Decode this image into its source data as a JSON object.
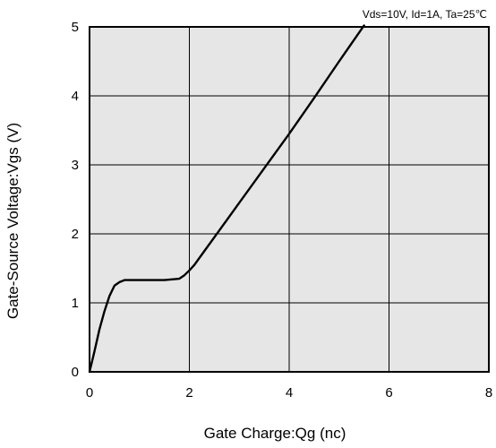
{
  "chart_data": {
    "type": "line",
    "annotation": "Vds=10V, Id=1A, Ta=25℃",
    "xlabel": "Gate Charge:Qg  (nc)",
    "ylabel": "Gate-Source Voltage:Vgs  (V)",
    "xlim": [
      0,
      8
    ],
    "ylim": [
      0,
      5
    ],
    "xticks": [
      "0",
      "2",
      "4",
      "6",
      "8"
    ],
    "yticks": [
      "0",
      "1",
      "2",
      "3",
      "4",
      "5"
    ],
    "grid": true,
    "background_color": "#e6e6e6",
    "line_color": "#000000",
    "series": [
      {
        "x": [
          0,
          0.1,
          0.2,
          0.3,
          0.4,
          0.5,
          0.6,
          0.7,
          1.0,
          1.5,
          1.8,
          1.9,
          2.0,
          2.1,
          2.3,
          2.6,
          3.0,
          3.5,
          4.0,
          4.5,
          5.0,
          5.5
        ],
        "y": [
          0,
          0.3,
          0.62,
          0.88,
          1.1,
          1.25,
          1.3,
          1.33,
          1.33,
          1.33,
          1.35,
          1.4,
          1.47,
          1.55,
          1.75,
          2.05,
          2.45,
          2.95,
          3.45,
          3.97,
          4.5,
          5.02
        ]
      }
    ]
  }
}
